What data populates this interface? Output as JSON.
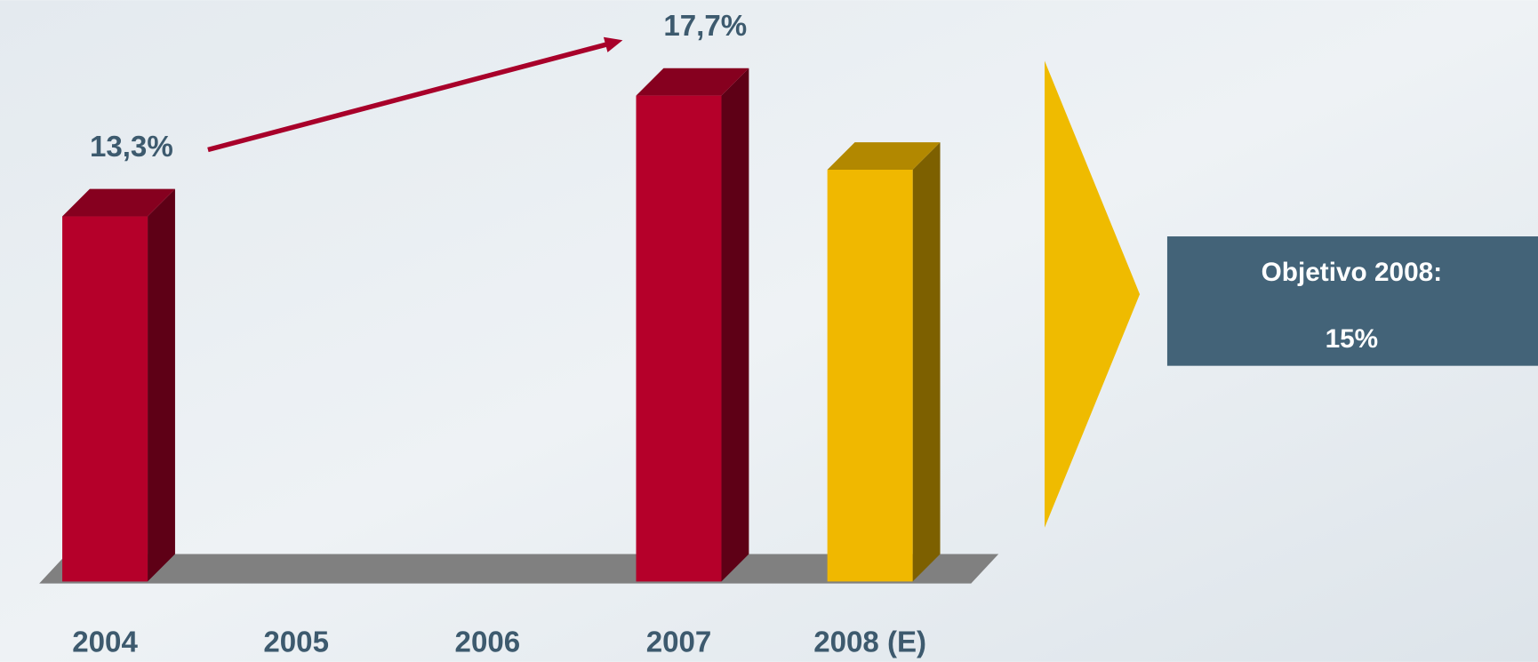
{
  "chart_data": {
    "type": "bar3d",
    "categories": [
      "2004",
      "2005",
      "2006",
      "2007",
      "2008 (E)"
    ],
    "values": [
      13.3,
      null,
      null,
      17.7,
      15
    ],
    "value_labels": [
      "13,3%",
      null,
      null,
      "17,7%",
      null
    ],
    "colors": [
      "#b5002a",
      null,
      null,
      "#b5002a",
      "#f0b800"
    ],
    "ylim": [
      0,
      20
    ],
    "annotations": [
      "Objetivo 2008:",
      "15%"
    ]
  }
}
